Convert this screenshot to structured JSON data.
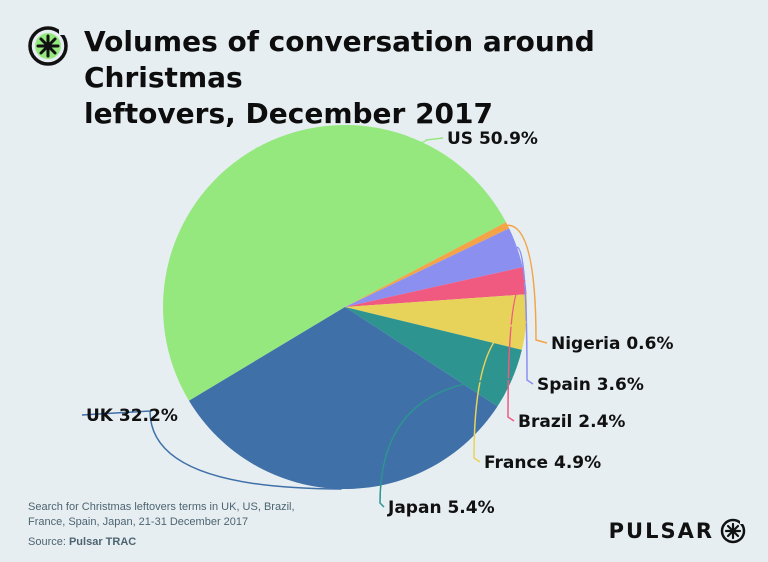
{
  "title_lines": [
    "Volumes of conversation around Christmas",
    "leftovers, December 2017"
  ],
  "footnote": {
    "lines": [
      "Search for Christmas leftovers terms in UK, US, Brazil,",
      "France, Spain, Japan, 21-31 December 2017"
    ],
    "source_prefix": "Source: ",
    "source_name": "Pulsar TRAC"
  },
  "brand": {
    "name": "PULSAR",
    "icon": "pulsar-asterisk-icon"
  },
  "colors": {
    "background": "#e6eef2"
  },
  "chart_data": {
    "type": "pie",
    "title": "Volumes of conversation around Christmas leftovers, December 2017",
    "slices": [
      {
        "name": "US",
        "value": 50.9,
        "label": "US 50.9%",
        "color": "#95e87e"
      },
      {
        "name": "Nigeria",
        "value": 0.6,
        "label": "Nigeria 0.6%",
        "color": "#f5a347"
      },
      {
        "name": "Spain",
        "value": 3.6,
        "label": "Spain 3.6%",
        "color": "#8a8ff0"
      },
      {
        "name": "Brazil",
        "value": 2.4,
        "label": "Brazil 2.4%",
        "color": "#f05a80"
      },
      {
        "name": "France",
        "value": 4.9,
        "label": "France 4.9%",
        "color": "#e8d35a"
      },
      {
        "name": "Japan",
        "value": 5.4,
        "label": "Japan 5.4%",
        "color": "#2e9490"
      },
      {
        "name": "UK",
        "value": 32.2,
        "label": "UK 32.2%",
        "color": "#3f70a8"
      }
    ],
    "start_angle_deg": 239,
    "direction": "clockwise",
    "legend": "none"
  }
}
